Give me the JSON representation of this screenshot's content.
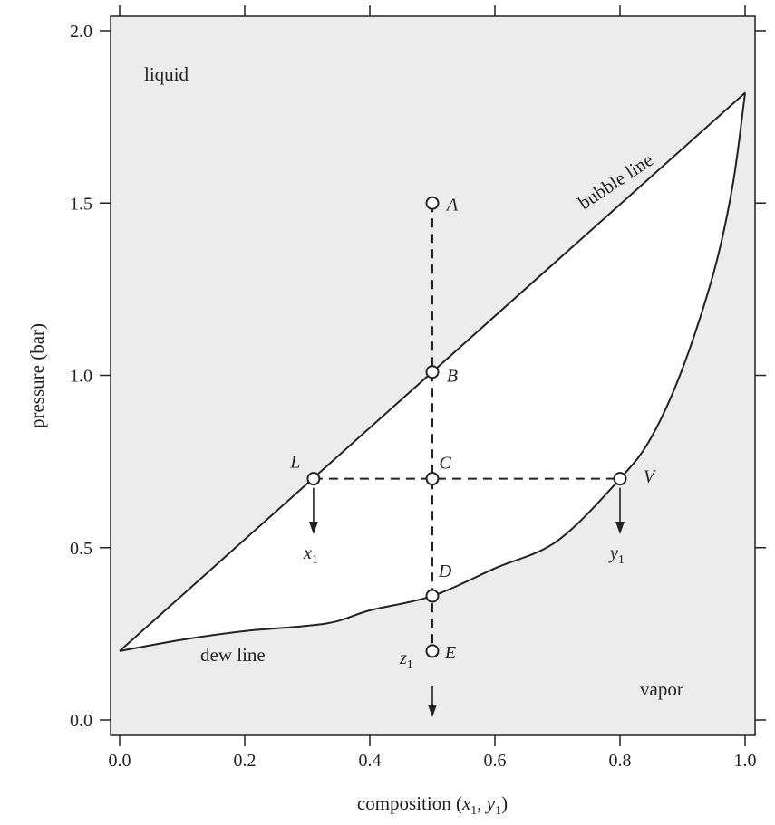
{
  "chart_data": {
    "type": "line",
    "xlabel": "composition (x1, y1)",
    "ylabel": "pressure (bar)",
    "xlim": [
      0.0,
      1.0
    ],
    "ylim": [
      0.0,
      2.0
    ],
    "x_ticks": [
      "0.0",
      "0.2",
      "0.4",
      "0.6",
      "0.8",
      "1.0"
    ],
    "y_ticks": [
      "0.0",
      "0.5",
      "1.0",
      "1.5",
      "2.0"
    ],
    "grid": false,
    "series": [
      {
        "name": "bubble line",
        "x": [
          0.0,
          1.0
        ],
        "y": [
          0.2,
          1.82
        ]
      },
      {
        "name": "dew line",
        "x": [
          0.0,
          0.1,
          0.2,
          0.33,
          0.4,
          0.5,
          0.6,
          0.7,
          0.8,
          0.85,
          0.9,
          0.95,
          0.98,
          1.0
        ],
        "y": [
          0.2,
          0.233,
          0.258,
          0.28,
          0.318,
          0.36,
          0.44,
          0.52,
          0.7,
          0.82,
          1.02,
          1.3,
          1.55,
          1.82
        ]
      }
    ],
    "points": [
      {
        "label": "A",
        "x": 0.5,
        "y": 1.5
      },
      {
        "label": "B",
        "x": 0.5,
        "y": 1.01
      },
      {
        "label": "C",
        "x": 0.5,
        "y": 0.7
      },
      {
        "label": "D",
        "x": 0.5,
        "y": 0.36
      },
      {
        "label": "E",
        "x": 0.5,
        "y": 0.2
      },
      {
        "label": "L",
        "x": 0.31,
        "y": 0.7
      },
      {
        "label": "V",
        "x": 0.8,
        "y": 0.7
      }
    ],
    "annotations": {
      "liquid": "liquid",
      "vapor": "vapor",
      "bubble_line": "bubble line",
      "dew_line": "dew line",
      "x1": "x",
      "y1": "y",
      "z1": "z",
      "subscript": "1"
    },
    "xlabel_parts": {
      "prefix": "composition (",
      "x": "x",
      "sep": ", ",
      "y": "y",
      "suffix": ")",
      "sub": "1"
    },
    "colors": {
      "outside_region": "#ececec",
      "two_phase_region": "#ffffff",
      "line": "#222222"
    }
  }
}
